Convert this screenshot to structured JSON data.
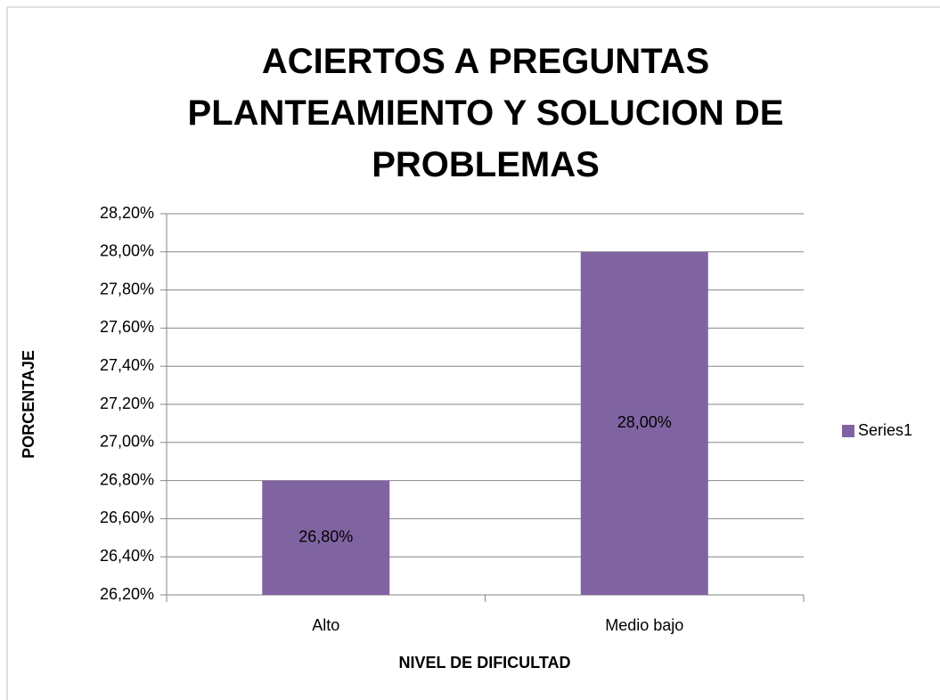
{
  "chart_data": {
    "type": "bar",
    "title": "ACIERTOS A PREGUNTAS PLANTEAMIENTO Y SOLUCION DE PROBLEMAS",
    "x_label": "NIVEL DE DIFICULTAD",
    "y_label": "PORCENTAJE",
    "categories": [
      "Alto",
      "Medio bajo"
    ],
    "series": [
      {
        "name": "Series1",
        "color": "#8064a2",
        "values": [
          26.8,
          28.0
        ],
        "value_labels": [
          "26,80%",
          "28,00%"
        ]
      }
    ],
    "ylim": [
      26.2,
      28.2
    ],
    "yticks": [
      {
        "value": 26.2,
        "label": "26,20%"
      },
      {
        "value": 26.4,
        "label": "26,40%"
      },
      {
        "value": 26.6,
        "label": "26,60%"
      },
      {
        "value": 26.8,
        "label": "26,80%"
      },
      {
        "value": 27.0,
        "label": "27,00%"
      },
      {
        "value": 27.2,
        "label": "27,20%"
      },
      {
        "value": 27.4,
        "label": "27,40%"
      },
      {
        "value": 27.6,
        "label": "27,60%"
      },
      {
        "value": 27.8,
        "label": "27,80%"
      },
      {
        "value": 28.0,
        "label": "28,00%"
      },
      {
        "value": 28.2,
        "label": "28,20%"
      }
    ],
    "grid": true,
    "legend": "right"
  }
}
